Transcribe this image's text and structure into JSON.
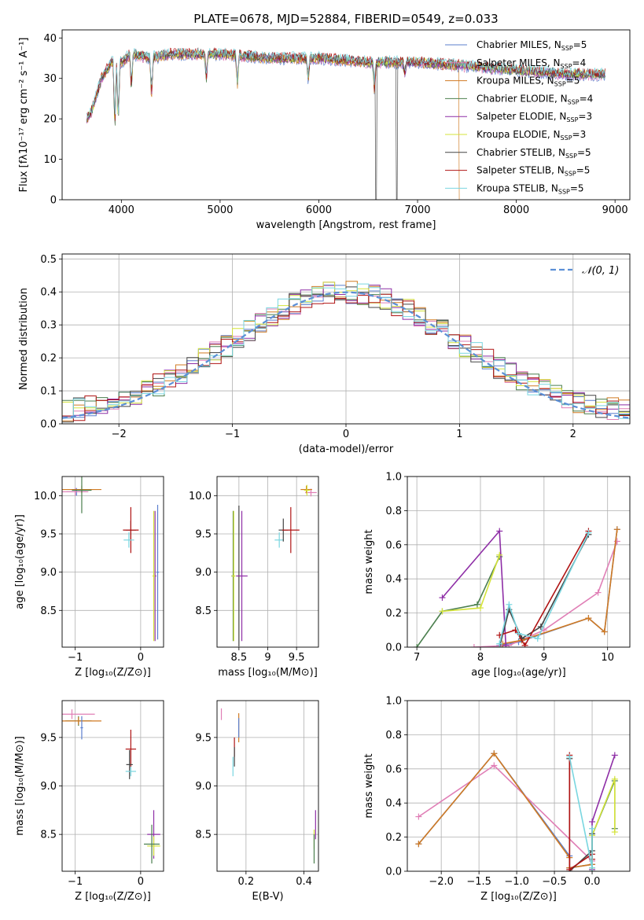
{
  "colors": {
    "series": [
      "#5b7fce",
      "#e07fb6",
      "#d07a22",
      "#4b7f4e",
      "#8e2ea6",
      "#d4e33a",
      "#444444",
      "#b01414",
      "#79d6e0"
    ],
    "normal_curve": "#5b8fd6",
    "grid": "#b0b0b0"
  },
  "legend_entries": [
    {
      "prefix": "Chabrier MILES, N",
      "sub": "SSP",
      "suffix": "=5"
    },
    {
      "prefix": "Salpeter MILES, N",
      "sub": "SSP",
      "suffix": "=4"
    },
    {
      "prefix": "Kroupa MILES, N",
      "sub": "SSP",
      "suffix": "=5"
    },
    {
      "prefix": "Chabrier ELODIE, N",
      "sub": "SSP",
      "suffix": "=4"
    },
    {
      "prefix": "Salpeter ELODIE, N",
      "sub": "SSP",
      "suffix": "=3"
    },
    {
      "prefix": "Kroupa ELODIE, N",
      "sub": "SSP",
      "suffix": "=3"
    },
    {
      "prefix": "Chabrier STELIB, N",
      "sub": "SSP",
      "suffix": "=5"
    },
    {
      "prefix": "Salpeter STELIB, N",
      "sub": "SSP",
      "suffix": "=5"
    },
    {
      "prefix": "Kroupa STELIB, N",
      "sub": "SSP",
      "suffix": "=5"
    }
  ],
  "chart_data": [
    {
      "type": "line",
      "id": "spectrum",
      "title": "PLATE=0678, MJD=52884, FIBERID=0549, z=0.033",
      "xlabel": "wavelength [Angstrom, rest frame]",
      "ylabel": "Flux [fλ10⁻¹⁷ erg cm⁻² s⁻¹ A⁻¹]",
      "xlim": [
        3400,
        9150
      ],
      "ylim": [
        0,
        42
      ],
      "xticks": [
        4000,
        5000,
        6000,
        7000,
        8000,
        9000
      ],
      "yticks": [
        0,
        10,
        20,
        30,
        40
      ],
      "continuum_x": [
        3650,
        3700,
        3800,
        3900,
        4000,
        4100,
        4300,
        4500,
        4800,
        5000,
        5500,
        6000,
        6500,
        7000,
        7500,
        8000,
        8500,
        8900
      ],
      "continuum_y": [
        20,
        22,
        30,
        34,
        34,
        36,
        35,
        36,
        36,
        36,
        35,
        35,
        34,
        34,
        33,
        32,
        31,
        31
      ],
      "absorption_lines": [
        {
          "x": 3934,
          "depth": 15
        },
        {
          "x": 3969,
          "depth": 14
        },
        {
          "x": 4102,
          "depth": 8
        },
        {
          "x": 4305,
          "depth": 9
        },
        {
          "x": 4861,
          "depth": 6
        },
        {
          "x": 5175,
          "depth": 7
        },
        {
          "x": 5893,
          "depth": 5
        },
        {
          "x": 6563,
          "depth": 6
        },
        {
          "x": 6870,
          "depth": 3
        }
      ],
      "dropouts": [
        {
          "series": 2,
          "x": 7420
        },
        {
          "series": 6,
          "x": 6580
        },
        {
          "series": 6,
          "x": 6790
        }
      ]
    },
    {
      "type": "step",
      "id": "residual_histogram",
      "xlabel": "(data-model)/error",
      "ylabel": "Normed distribution",
      "xlim": [
        -2.5,
        2.5
      ],
      "ylim": [
        0,
        0.515
      ],
      "xticks": [
        -2,
        -1,
        0,
        1,
        2
      ],
      "yticks": [
        0.0,
        0.1,
        0.2,
        0.3,
        0.4,
        0.5
      ],
      "bin_width": 0.1,
      "curve_label": "𝒩(0, 1)",
      "curve": {
        "mean": 0,
        "sigma": 1
      }
    },
    {
      "type": "errorbar",
      "id": "age_vs_z",
      "xlabel": "Z [log₁₀(Z/Z⊙)]",
      "ylabel": "age  [log₁₀(age/yr)]",
      "xlim": [
        -1.2,
        0.35
      ],
      "ylim": [
        8.02,
        10.25
      ],
      "xticks": [
        -1,
        0
      ],
      "yticks": [
        8.5,
        9.0,
        9.5,
        10.0
      ],
      "points": [
        {
          "series": 0,
          "x": -0.98,
          "y": 10.05,
          "xerr": 0.15,
          "yerr": 0.05
        },
        {
          "series": 1,
          "x": -1.0,
          "y": 10.05,
          "xerr": 0.2,
          "yerr": 0.05
        },
        {
          "series": 2,
          "x": -0.9,
          "y": 10.08,
          "xerr": 0.3,
          "yerr": 0.05
        },
        {
          "series": 3,
          "x": -0.9,
          "y": 10.07,
          "xerr": 0.15,
          "yerr": 0.3
        },
        {
          "series": 6,
          "x": -0.15,
          "y": 9.55,
          "xerr": 0.08,
          "yerr": 0.12
        },
        {
          "series": 7,
          "x": -0.15,
          "y": 9.55,
          "xerr": 0.12,
          "yerr": 0.3
        },
        {
          "series": 8,
          "x": -0.18,
          "y": 9.42,
          "xerr": 0.08,
          "yerr": 0.1
        },
        {
          "series": 4,
          "x": 0.22,
          "y": 8.95,
          "xerr": 0.02,
          "yerr": 0.85
        },
        {
          "series": 5,
          "x": 0.2,
          "y": 8.95,
          "xerr": 0.02,
          "yerr": 0.85
        },
        {
          "series": 0,
          "x": 0.26,
          "y": 9.0,
          "xerr": 0.02,
          "yerr": 0.88
        }
      ]
    },
    {
      "type": "errorbar",
      "id": "age_vs_mass",
      "xlabel": "mass [log₁₀(M/M⊙)]",
      "ylabel": "",
      "xlim": [
        8.12,
        9.88
      ],
      "ylim": [
        8.02,
        10.25
      ],
      "xticks": [
        8.5,
        9.0,
        9.5
      ],
      "yticks": [
        8.5,
        9.0,
        9.5,
        10.0
      ],
      "points": [
        {
          "series": 3,
          "x": 8.4,
          "y": 8.95,
          "xerr": 0.03,
          "yerr": 0.85
        },
        {
          "series": 5,
          "x": 8.41,
          "y": 8.95,
          "xerr": 0.03,
          "yerr": 0.85
        },
        {
          "series": 6,
          "x": 8.5,
          "y": 8.95,
          "xerr": 0.02,
          "yerr": 0.92
        },
        {
          "series": 4,
          "x": 8.55,
          "y": 8.95,
          "xerr": 0.1,
          "yerr": 0.85
        },
        {
          "series": 8,
          "x": 9.2,
          "y": 9.42,
          "xerr": 0.08,
          "yerr": 0.1
        },
        {
          "series": 6,
          "x": 9.27,
          "y": 9.55,
          "xerr": 0.08,
          "yerr": 0.15
        },
        {
          "series": 7,
          "x": 9.4,
          "y": 9.55,
          "xerr": 0.15,
          "yerr": 0.3
        },
        {
          "series": 1,
          "x": 9.75,
          "y": 10.04,
          "xerr": 0.1,
          "yerr": 0.05
        },
        {
          "series": 2,
          "x": 9.67,
          "y": 10.08,
          "xerr": 0.1,
          "yerr": 0.05
        },
        {
          "series": 5,
          "x": 9.68,
          "y": 10.07,
          "xerr": 0.05,
          "yerr": 0.07
        }
      ]
    },
    {
      "type": "line",
      "id": "mass_weight_vs_age",
      "xlabel": "age  [log₁₀(age/yr)]",
      "ylabel": "mass weight",
      "xlim": [
        6.85,
        10.35
      ],
      "ylim": [
        0,
        1
      ],
      "xticks": [
        7,
        8,
        9,
        10
      ],
      "yticks": [
        0.0,
        0.2,
        0.4,
        0.6,
        0.8,
        1.0
      ],
      "series": [
        {
          "series": 0,
          "x": [
            8.3,
            8.6,
            9.7,
            9.95,
            10.15
          ],
          "y": [
            0.01,
            0.03,
            0.17,
            0.09,
            0.69
          ]
        },
        {
          "series": 1,
          "x": [
            7.9,
            8.45,
            9.0,
            9.85,
            10.15
          ],
          "y": [
            0.0,
            0.01,
            0.1,
            0.32,
            0.62
          ]
        },
        {
          "series": 2,
          "x": [
            8.35,
            8.65,
            9.7,
            9.95,
            10.15
          ],
          "y": [
            0.02,
            0.04,
            0.17,
            0.09,
            0.69
          ]
        },
        {
          "series": 3,
          "x": [
            7.0,
            7.4,
            7.95,
            8.3
          ],
          "y": [
            0.0,
            0.21,
            0.25,
            0.53
          ]
        },
        {
          "series": 4,
          "x": [
            7.4,
            8.3,
            8.4
          ],
          "y": [
            0.29,
            0.68,
            0.01
          ]
        },
        {
          "series": 5,
          "x": [
            7.4,
            8.0,
            8.3
          ],
          "y": [
            0.21,
            0.23,
            0.54
          ]
        },
        {
          "series": 6,
          "x": [
            8.3,
            8.45,
            8.65,
            8.95,
            9.7
          ],
          "y": [
            0.0,
            0.22,
            0.05,
            0.12,
            0.66
          ]
        },
        {
          "series": 7,
          "x": [
            8.3,
            8.55,
            8.7,
            9.7
          ],
          "y": [
            0.07,
            0.1,
            0.01,
            0.68
          ]
        },
        {
          "series": 8,
          "x": [
            8.3,
            8.45,
            8.6,
            8.9,
            9.7
          ],
          "y": [
            0.02,
            0.25,
            0.08,
            0.05,
            0.67
          ]
        }
      ]
    },
    {
      "type": "errorbar",
      "id": "mass_vs_z",
      "xlabel": "Z [log₁₀(Z/Z⊙)]",
      "ylabel": "mass [log₁₀(M/M⊙)]",
      "xlim": [
        -1.2,
        0.35
      ],
      "ylim": [
        8.12,
        9.88
      ],
      "xticks": [
        -1,
        0
      ],
      "yticks": [
        8.5,
        9.0,
        9.5
      ],
      "points": [
        {
          "series": 1,
          "x": -1.05,
          "y": 9.74,
          "xerr": 0.35,
          "yerr": 0.05
        },
        {
          "series": 3,
          "x": -0.95,
          "y": 9.67,
          "xerr": 0.2,
          "yerr": 0.05
        },
        {
          "series": 2,
          "x": -0.95,
          "y": 9.67,
          "xerr": 0.35,
          "yerr": 0.04
        },
        {
          "series": 0,
          "x": -0.9,
          "y": 9.6,
          "xerr": 0.02,
          "yerr": 0.12
        },
        {
          "series": 7,
          "x": -0.15,
          "y": 9.38,
          "xerr": 0.08,
          "yerr": 0.2
        },
        {
          "series": 6,
          "x": -0.17,
          "y": 9.22,
          "xerr": 0.05,
          "yerr": 0.15
        },
        {
          "series": 8,
          "x": -0.15,
          "y": 9.15,
          "xerr": 0.08,
          "yerr": 0.05
        },
        {
          "series": 4,
          "x": 0.2,
          "y": 8.5,
          "xerr": 0.1,
          "yerr": 0.25
        },
        {
          "series": 5,
          "x": 0.2,
          "y": 8.38,
          "xerr": 0.1,
          "yerr": 0.1
        },
        {
          "series": 3,
          "x": 0.17,
          "y": 8.4,
          "xerr": 0.12,
          "yerr": 0.2
        }
      ]
    },
    {
      "type": "errorbar",
      "id": "mass_vs_ebv",
      "xlabel": "E(B-V)",
      "ylabel": "",
      "xlim": [
        0.1,
        0.45
      ],
      "ylim": [
        8.12,
        9.88
      ],
      "xticks": [
        0.2,
        0.4
      ],
      "yticks": [
        8.5,
        9.0,
        9.5
      ],
      "points": [
        {
          "series": 1,
          "x": 0.115,
          "y": 9.74,
          "xerr": 0.0,
          "yerr": 0.06
        },
        {
          "series": 2,
          "x": 0.175,
          "y": 9.6,
          "xerr": 0.0,
          "yerr": 0.15
        },
        {
          "series": 0,
          "x": 0.175,
          "y": 9.6,
          "xerr": 0.0,
          "yerr": 0.1
        },
        {
          "series": 7,
          "x": 0.16,
          "y": 9.4,
          "xerr": 0.0,
          "yerr": 0.1
        },
        {
          "series": 8,
          "x": 0.155,
          "y": 9.2,
          "xerr": 0.0,
          "yerr": 0.1
        },
        {
          "series": 6,
          "x": 0.16,
          "y": 9.3,
          "xerr": 0.0,
          "yerr": 0.1
        },
        {
          "series": 4,
          "x": 0.44,
          "y": 8.6,
          "xerr": 0.0,
          "yerr": 0.15
        },
        {
          "series": 5,
          "x": 0.435,
          "y": 8.45,
          "xerr": 0.0,
          "yerr": 0.1
        },
        {
          "series": 3,
          "x": 0.435,
          "y": 8.35,
          "xerr": 0.0,
          "yerr": 0.15
        }
      ]
    },
    {
      "type": "line",
      "id": "mass_weight_vs_z",
      "xlabel": "Z [log₁₀(Z/Z⊙)]",
      "ylabel": "mass weight",
      "xlim": [
        -2.45,
        0.5
      ],
      "ylim": [
        0,
        1
      ],
      "xticks": [
        -2.0,
        -1.5,
        -1.0,
        -0.5,
        0.0
      ],
      "yticks": [
        0.0,
        0.2,
        0.4,
        0.6,
        0.8,
        1.0
      ],
      "series": [
        {
          "series": 0,
          "x": [
            -2.3,
            -1.3,
            -0.3,
            -0.3,
            0.0
          ],
          "y": [
            0.16,
            0.69,
            0.09,
            0.02,
            0.04
          ]
        },
        {
          "series": 1,
          "x": [
            -2.3,
            -1.3,
            0.0
          ],
          "y": [
            0.32,
            0.62,
            0.06
          ]
        },
        {
          "series": 2,
          "x": [
            -2.3,
            -1.3,
            -0.3,
            -0.3,
            0.0
          ],
          "y": [
            0.16,
            0.69,
            0.08,
            0.02,
            0.04
          ]
        },
        {
          "series": 3,
          "x": [
            0.0,
            0.0,
            0.3,
            0.3
          ],
          "y": [
            0.0,
            0.21,
            0.53,
            0.25
          ]
        },
        {
          "series": 4,
          "x": [
            0.0,
            0.0,
            0.3
          ],
          "y": [
            0.01,
            0.29,
            0.68
          ]
        },
        {
          "series": 5,
          "x": [
            0.0,
            0.0,
            0.3,
            0.3
          ],
          "y": [
            0.02,
            0.21,
            0.54,
            0.23
          ]
        },
        {
          "series": 6,
          "x": [
            -0.3,
            -0.3,
            0.0,
            0.0
          ],
          "y": [
            0.66,
            0.0,
            0.12,
            0.22
          ]
        },
        {
          "series": 7,
          "x": [
            -0.3,
            -0.3,
            0.0,
            0.0
          ],
          "y": [
            0.68,
            0.01,
            0.1,
            0.07
          ]
        },
        {
          "series": 8,
          "x": [
            -0.3,
            0.0,
            0.0
          ],
          "y": [
            0.67,
            0.02,
            0.25
          ]
        }
      ]
    }
  ]
}
